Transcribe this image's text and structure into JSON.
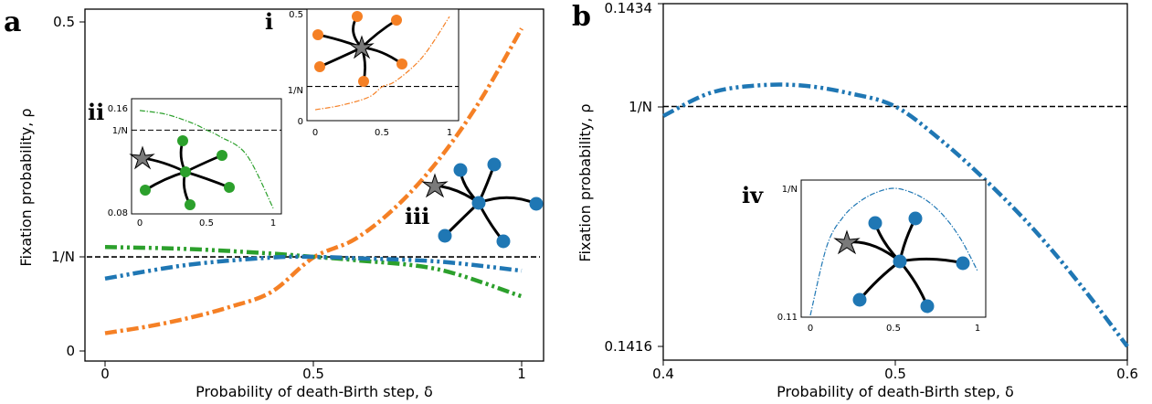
{
  "colors": {
    "orange": "#f58025",
    "green": "#2ca02c",
    "blue": "#1f77b4",
    "black": "#000000",
    "star": "#7a7a7a"
  },
  "panel_a": {
    "letter": "a",
    "xlabel": "Probability of death-Birth step, δ",
    "ylabel": "Fixation probability, ρ",
    "xticks": [
      "0",
      "0.5",
      "1"
    ],
    "yticks": [
      "0",
      "1/N",
      "0.5"
    ],
    "graph_label": "iii",
    "inset_i": {
      "label": "i",
      "xticks": [
        "0",
        "0.5",
        "1"
      ],
      "yticks": [
        "0",
        "1/N",
        "0.5"
      ]
    },
    "inset_ii": {
      "label": "ii",
      "xticks": [
        "0",
        "0.5",
        "1"
      ],
      "yticks": [
        "0.08",
        "1/N",
        "0.16"
      ]
    }
  },
  "panel_b": {
    "letter": "b",
    "xlabel": "Probability of death-Birth step, δ",
    "ylabel": "Fixation probability, ρ",
    "xticks": [
      "0.4",
      "0.5",
      "0.6"
    ],
    "yticks": [
      "0.1416",
      "1/N",
      "0.1434"
    ],
    "inset_iv": {
      "label": "iv",
      "xticks": [
        "0",
        "0.5",
        "1"
      ],
      "yticks": [
        "0.11",
        "1/N"
      ]
    }
  },
  "chart_data": [
    {
      "type": "line",
      "panel": "a",
      "xlim": [
        0,
        1
      ],
      "ylim": [
        0,
        0.5
      ],
      "reference_line": {
        "label": "1/N",
        "y": 0.1429
      },
      "series": [
        {
          "color": "orange",
          "style": "dash-dot",
          "x": [
            0,
            0.1,
            0.2,
            0.3,
            0.4,
            0.5,
            0.6,
            0.7,
            0.8,
            0.9,
            1.0
          ],
          "y": [
            0.027,
            0.037,
            0.05,
            0.067,
            0.09,
            0.142,
            0.17,
            0.22,
            0.29,
            0.38,
            0.49
          ]
        },
        {
          "color": "green",
          "style": "dash-dot-dot",
          "x": [
            0,
            0.2,
            0.4,
            0.5,
            0.6,
            0.8,
            1.0
          ],
          "y": [
            0.158,
            0.155,
            0.148,
            0.143,
            0.138,
            0.124,
            0.083
          ]
        },
        {
          "color": "blue",
          "style": "dash-dot-dot",
          "x": [
            0,
            0.2,
            0.4,
            0.5,
            0.6,
            0.8,
            1.0
          ],
          "y": [
            0.11,
            0.131,
            0.142,
            0.143,
            0.141,
            0.136,
            0.122
          ]
        }
      ]
    },
    {
      "type": "line",
      "panel": "b",
      "xlim": [
        0.4,
        0.6
      ],
      "ylim": [
        0.1416,
        0.1434
      ],
      "reference_line": {
        "label": "1/N",
        "y": 0.14286
      },
      "series": [
        {
          "color": "blue",
          "style": "dash-dot-dot",
          "x": [
            0.4,
            0.42,
            0.44,
            0.46,
            0.48,
            0.5,
            0.52,
            0.54,
            0.56,
            0.58,
            0.6
          ],
          "y": [
            0.14281,
            0.14293,
            0.14297,
            0.14297,
            0.14293,
            0.14286,
            0.14268,
            0.14246,
            0.14221,
            0.14192,
            0.1416
          ]
        }
      ]
    },
    {
      "type": "line",
      "panel": "a-inset-i",
      "xlim": [
        0,
        1
      ],
      "ylim": [
        0,
        0.5
      ],
      "reference_line": {
        "label": "1/N",
        "y": 0.1429
      },
      "series": [
        {
          "color": "orange",
          "style": "dash-dot",
          "x": [
            0,
            0.2,
            0.4,
            0.5,
            0.6,
            0.8,
            1.0
          ],
          "y": [
            0.027,
            0.05,
            0.09,
            0.142,
            0.17,
            0.29,
            0.49
          ]
        }
      ]
    },
    {
      "type": "line",
      "panel": "a-inset-ii",
      "xlim": [
        0,
        1
      ],
      "ylim": [
        0.08,
        0.16
      ],
      "reference_line": {
        "label": "1/N",
        "y": 0.1429
      },
      "series": [
        {
          "color": "green",
          "style": "dash-dot",
          "x": [
            0,
            0.2,
            0.4,
            0.5,
            0.6,
            0.8,
            1.0
          ],
          "y": [
            0.158,
            0.155,
            0.148,
            0.143,
            0.138,
            0.124,
            0.083
          ]
        }
      ]
    },
    {
      "type": "line",
      "panel": "b-inset-iv",
      "xlim": [
        0,
        1
      ],
      "series": [
        {
          "color": "blue",
          "style": "dash-dot",
          "x": [
            0,
            0.1,
            0.2,
            0.3,
            0.4,
            0.5,
            0.6,
            0.7,
            0.8,
            0.9,
            1.0
          ],
          "y": [
            0.0,
            0.55,
            0.78,
            0.9,
            0.97,
            1.0,
            0.97,
            0.9,
            0.78,
            0.6,
            0.35
          ]
        }
      ]
    }
  ]
}
